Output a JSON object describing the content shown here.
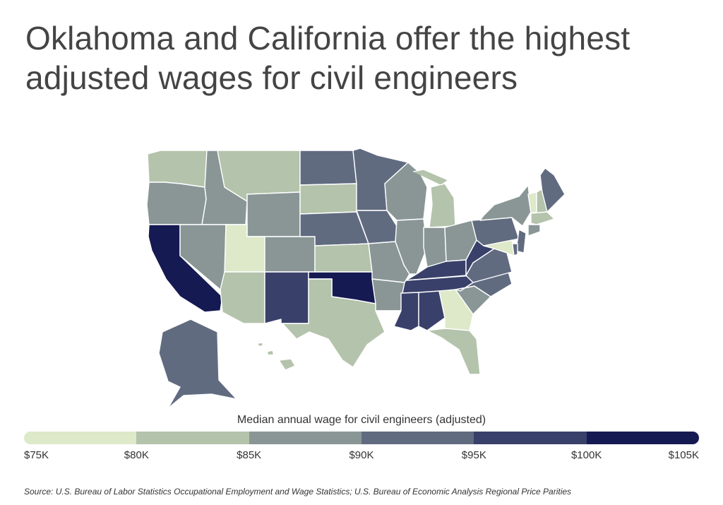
{
  "title": "Oklahoma and California offer the highest adjusted wages for civil engineers",
  "legend": {
    "title": "Median annual wage for civil engineers (adjusted)",
    "ticks": [
      "$75K",
      "$80K",
      "$85K",
      "$90K",
      "$95K",
      "$100K",
      "$105K"
    ],
    "bins": [
      {
        "min": 75000,
        "max": 80000,
        "color": "#dde9c8"
      },
      {
        "min": 80000,
        "max": 85000,
        "color": "#b4c3ab"
      },
      {
        "min": 85000,
        "max": 90000,
        "color": "#8a9696"
      },
      {
        "min": 90000,
        "max": 95000,
        "color": "#616b80"
      },
      {
        "min": 95000,
        "max": 100000,
        "color": "#39406a"
      },
      {
        "min": 100000,
        "max": 105000,
        "color": "#161a52"
      }
    ]
  },
  "source": "Source:  U.S. Bureau of Labor Statistics Occupational Employment and Wage Statistics; U.S. Bureau of Economic Analysis Regional Price Parities",
  "states": [
    {
      "id": "WA",
      "bin": 1
    },
    {
      "id": "OR",
      "bin": 2
    },
    {
      "id": "CA",
      "bin": 5
    },
    {
      "id": "ID",
      "bin": 2
    },
    {
      "id": "NV",
      "bin": 2
    },
    {
      "id": "MT",
      "bin": 1
    },
    {
      "id": "WY",
      "bin": 2
    },
    {
      "id": "UT",
      "bin": 0
    },
    {
      "id": "AZ",
      "bin": 1
    },
    {
      "id": "CO",
      "bin": 2
    },
    {
      "id": "NM",
      "bin": 4
    },
    {
      "id": "ND",
      "bin": 3
    },
    {
      "id": "SD",
      "bin": 1
    },
    {
      "id": "NE",
      "bin": 3
    },
    {
      "id": "KS",
      "bin": 1
    },
    {
      "id": "OK",
      "bin": 5
    },
    {
      "id": "TX",
      "bin": 1
    },
    {
      "id": "MN",
      "bin": 3
    },
    {
      "id": "IA",
      "bin": 3
    },
    {
      "id": "MO",
      "bin": 2
    },
    {
      "id": "AR",
      "bin": 2
    },
    {
      "id": "LA",
      "bin": null
    },
    {
      "id": "WI",
      "bin": 2
    },
    {
      "id": "IL",
      "bin": 2
    },
    {
      "id": "MI",
      "bin": 1
    },
    {
      "id": "IN",
      "bin": 2
    },
    {
      "id": "OH",
      "bin": 2
    },
    {
      "id": "KY",
      "bin": 4
    },
    {
      "id": "TN",
      "bin": 4
    },
    {
      "id": "MS",
      "bin": 4
    },
    {
      "id": "AL",
      "bin": 4
    },
    {
      "id": "GA",
      "bin": 0
    },
    {
      "id": "FL",
      "bin": 1
    },
    {
      "id": "SC",
      "bin": 2
    },
    {
      "id": "NC",
      "bin": 3
    },
    {
      "id": "VA",
      "bin": 3
    },
    {
      "id": "WV",
      "bin": 4
    },
    {
      "id": "PA",
      "bin": 3
    },
    {
      "id": "NY",
      "bin": 2
    },
    {
      "id": "ME",
      "bin": 3
    },
    {
      "id": "VT",
      "bin": 0
    },
    {
      "id": "NH",
      "bin": 1
    },
    {
      "id": "MA",
      "bin": 1
    },
    {
      "id": "CT",
      "bin": 2
    },
    {
      "id": "NJ",
      "bin": 3
    },
    {
      "id": "DE",
      "bin": 3
    },
    {
      "id": "MD",
      "bin": 0
    },
    {
      "id": "AK",
      "bin": 3
    },
    {
      "id": "HI",
      "bin": 1
    }
  ],
  "no_data_color": "#ffffff"
}
